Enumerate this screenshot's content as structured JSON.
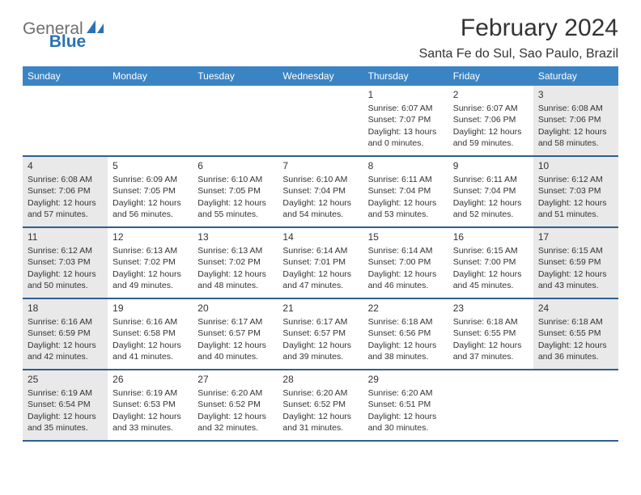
{
  "logo": {
    "general": "General",
    "blue": "Blue"
  },
  "title": "February 2024",
  "subtitle": "Santa Fe do Sul, Sao Paulo, Brazil",
  "colors": {
    "header_bg": "#3b84c4",
    "row_border": "#2f5f8f",
    "shaded_bg": "#e9e9e9",
    "logo_gray": "#6f6f6f",
    "logo_blue": "#2a72b5"
  },
  "day_labels": [
    "Sunday",
    "Monday",
    "Tuesday",
    "Wednesday",
    "Thursday",
    "Friday",
    "Saturday"
  ],
  "weeks": [
    [
      {
        "empty": true
      },
      {
        "empty": true
      },
      {
        "empty": true
      },
      {
        "empty": true
      },
      {
        "day": "1",
        "sunrise": "Sunrise: 6:07 AM",
        "sunset": "Sunset: 7:07 PM",
        "daylight": "Daylight: 13 hours and 0 minutes."
      },
      {
        "day": "2",
        "sunrise": "Sunrise: 6:07 AM",
        "sunset": "Sunset: 7:06 PM",
        "daylight": "Daylight: 12 hours and 59 minutes."
      },
      {
        "day": "3",
        "sunrise": "Sunrise: 6:08 AM",
        "sunset": "Sunset: 7:06 PM",
        "daylight": "Daylight: 12 hours and 58 minutes.",
        "shaded": true
      }
    ],
    [
      {
        "day": "4",
        "sunrise": "Sunrise: 6:08 AM",
        "sunset": "Sunset: 7:06 PM",
        "daylight": "Daylight: 12 hours and 57 minutes.",
        "shaded": true
      },
      {
        "day": "5",
        "sunrise": "Sunrise: 6:09 AM",
        "sunset": "Sunset: 7:05 PM",
        "daylight": "Daylight: 12 hours and 56 minutes."
      },
      {
        "day": "6",
        "sunrise": "Sunrise: 6:10 AM",
        "sunset": "Sunset: 7:05 PM",
        "daylight": "Daylight: 12 hours and 55 minutes."
      },
      {
        "day": "7",
        "sunrise": "Sunrise: 6:10 AM",
        "sunset": "Sunset: 7:04 PM",
        "daylight": "Daylight: 12 hours and 54 minutes."
      },
      {
        "day": "8",
        "sunrise": "Sunrise: 6:11 AM",
        "sunset": "Sunset: 7:04 PM",
        "daylight": "Daylight: 12 hours and 53 minutes."
      },
      {
        "day": "9",
        "sunrise": "Sunrise: 6:11 AM",
        "sunset": "Sunset: 7:04 PM",
        "daylight": "Daylight: 12 hours and 52 minutes."
      },
      {
        "day": "10",
        "sunrise": "Sunrise: 6:12 AM",
        "sunset": "Sunset: 7:03 PM",
        "daylight": "Daylight: 12 hours and 51 minutes.",
        "shaded": true
      }
    ],
    [
      {
        "day": "11",
        "sunrise": "Sunrise: 6:12 AM",
        "sunset": "Sunset: 7:03 PM",
        "daylight": "Daylight: 12 hours and 50 minutes.",
        "shaded": true
      },
      {
        "day": "12",
        "sunrise": "Sunrise: 6:13 AM",
        "sunset": "Sunset: 7:02 PM",
        "daylight": "Daylight: 12 hours and 49 minutes."
      },
      {
        "day": "13",
        "sunrise": "Sunrise: 6:13 AM",
        "sunset": "Sunset: 7:02 PM",
        "daylight": "Daylight: 12 hours and 48 minutes."
      },
      {
        "day": "14",
        "sunrise": "Sunrise: 6:14 AM",
        "sunset": "Sunset: 7:01 PM",
        "daylight": "Daylight: 12 hours and 47 minutes."
      },
      {
        "day": "15",
        "sunrise": "Sunrise: 6:14 AM",
        "sunset": "Sunset: 7:00 PM",
        "daylight": "Daylight: 12 hours and 46 minutes."
      },
      {
        "day": "16",
        "sunrise": "Sunrise: 6:15 AM",
        "sunset": "Sunset: 7:00 PM",
        "daylight": "Daylight: 12 hours and 45 minutes."
      },
      {
        "day": "17",
        "sunrise": "Sunrise: 6:15 AM",
        "sunset": "Sunset: 6:59 PM",
        "daylight": "Daylight: 12 hours and 43 minutes.",
        "shaded": true
      }
    ],
    [
      {
        "day": "18",
        "sunrise": "Sunrise: 6:16 AM",
        "sunset": "Sunset: 6:59 PM",
        "daylight": "Daylight: 12 hours and 42 minutes.",
        "shaded": true
      },
      {
        "day": "19",
        "sunrise": "Sunrise: 6:16 AM",
        "sunset": "Sunset: 6:58 PM",
        "daylight": "Daylight: 12 hours and 41 minutes."
      },
      {
        "day": "20",
        "sunrise": "Sunrise: 6:17 AM",
        "sunset": "Sunset: 6:57 PM",
        "daylight": "Daylight: 12 hours and 40 minutes."
      },
      {
        "day": "21",
        "sunrise": "Sunrise: 6:17 AM",
        "sunset": "Sunset: 6:57 PM",
        "daylight": "Daylight: 12 hours and 39 minutes."
      },
      {
        "day": "22",
        "sunrise": "Sunrise: 6:18 AM",
        "sunset": "Sunset: 6:56 PM",
        "daylight": "Daylight: 12 hours and 38 minutes."
      },
      {
        "day": "23",
        "sunrise": "Sunrise: 6:18 AM",
        "sunset": "Sunset: 6:55 PM",
        "daylight": "Daylight: 12 hours and 37 minutes."
      },
      {
        "day": "24",
        "sunrise": "Sunrise: 6:18 AM",
        "sunset": "Sunset: 6:55 PM",
        "daylight": "Daylight: 12 hours and 36 minutes.",
        "shaded": true
      }
    ],
    [
      {
        "day": "25",
        "sunrise": "Sunrise: 6:19 AM",
        "sunset": "Sunset: 6:54 PM",
        "daylight": "Daylight: 12 hours and 35 minutes.",
        "shaded": true
      },
      {
        "day": "26",
        "sunrise": "Sunrise: 6:19 AM",
        "sunset": "Sunset: 6:53 PM",
        "daylight": "Daylight: 12 hours and 33 minutes."
      },
      {
        "day": "27",
        "sunrise": "Sunrise: 6:20 AM",
        "sunset": "Sunset: 6:52 PM",
        "daylight": "Daylight: 12 hours and 32 minutes."
      },
      {
        "day": "28",
        "sunrise": "Sunrise: 6:20 AM",
        "sunset": "Sunset: 6:52 PM",
        "daylight": "Daylight: 12 hours and 31 minutes."
      },
      {
        "day": "29",
        "sunrise": "Sunrise: 6:20 AM",
        "sunset": "Sunset: 6:51 PM",
        "daylight": "Daylight: 12 hours and 30 minutes."
      },
      {
        "empty": true
      },
      {
        "empty": true
      }
    ]
  ]
}
